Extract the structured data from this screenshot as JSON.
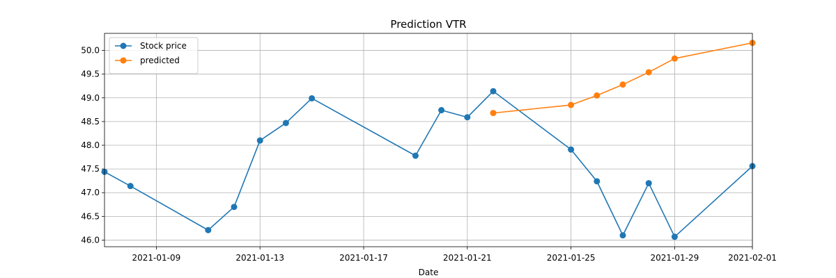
{
  "chart_data": {
    "type": "line",
    "title": "Prediction VTR",
    "xlabel": "Date",
    "ylabel": "",
    "xlim": [
      "2021-01-07",
      "2021-02-01"
    ],
    "ylim": [
      45.86,
      50.36
    ],
    "xticks": [
      "2021-01-09",
      "2021-01-13",
      "2021-01-17",
      "2021-01-21",
      "2021-01-25",
      "2021-01-29",
      "2021-02-01"
    ],
    "yticks": [
      "46.0",
      "46.5",
      "47.0",
      "47.5",
      "48.0",
      "48.5",
      "49.0",
      "49.5",
      "50.0"
    ],
    "grid": true,
    "legend_position": "upper-left",
    "series": [
      {
        "name": "Stock price",
        "color": "#1f77b4",
        "x": [
          "2021-01-07",
          "2021-01-08",
          "2021-01-11",
          "2021-01-12",
          "2021-01-13",
          "2021-01-14",
          "2021-01-15",
          "2021-01-19",
          "2021-01-20",
          "2021-01-21",
          "2021-01-22",
          "2021-01-25",
          "2021-01-26",
          "2021-01-27",
          "2021-01-28",
          "2021-01-29",
          "2021-02-01"
        ],
        "y": [
          47.44,
          47.14,
          46.21,
          46.7,
          48.1,
          48.47,
          48.99,
          47.78,
          48.74,
          48.59,
          49.14,
          47.91,
          47.24,
          46.1,
          47.2,
          46.07,
          47.56
        ]
      },
      {
        "name": "predicted",
        "color": "#ff7f0e",
        "x": [
          "2021-01-22",
          "2021-01-25",
          "2021-01-26",
          "2021-01-27",
          "2021-01-28",
          "2021-01-29",
          "2021-02-01"
        ],
        "y": [
          48.68,
          48.85,
          49.05,
          49.28,
          49.54,
          49.83,
          50.16
        ]
      }
    ]
  }
}
